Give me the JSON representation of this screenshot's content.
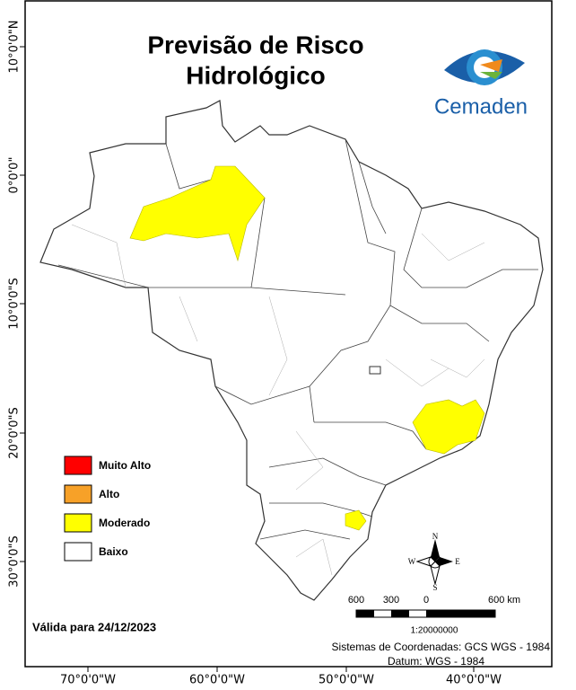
{
  "header": {
    "title_lines": [
      "Previsão de Risco",
      "Hidrológico"
    ]
  },
  "logo": {
    "text": "Cemaden"
  },
  "legend": {
    "items": [
      {
        "label": "Muito Alto",
        "color": "#ff0000"
      },
      {
        "label": "Alto",
        "color": "#f7a128"
      },
      {
        "label": "Moderado",
        "color": "#ffff00"
      },
      {
        "label": "Baixo",
        "color": "#ffffff"
      }
    ]
  },
  "grid_labels": {
    "latitude": [
      "10°0'0\"N",
      "0°0'0\"",
      "10°0'0\"S",
      "20°0'0\"S",
      "30°0'0\"S"
    ],
    "longitude": [
      "70°0'0\"W",
      "60°0'0\"W",
      "50°0'0\"W",
      "40°0'0\"W"
    ]
  },
  "compass": {
    "n": "N",
    "s": "S",
    "e": "E",
    "w": "W"
  },
  "scale_bar": {
    "labels": [
      "600",
      "300",
      "0",
      "600 km"
    ],
    "ratio": "1:20000000"
  },
  "validity": "Válida para 24/12/2023",
  "footer": {
    "lines": [
      "Sistemas de Coordenadas: GCS WGS - 1984",
      "Datum: WGS - 1984"
    ]
  }
}
